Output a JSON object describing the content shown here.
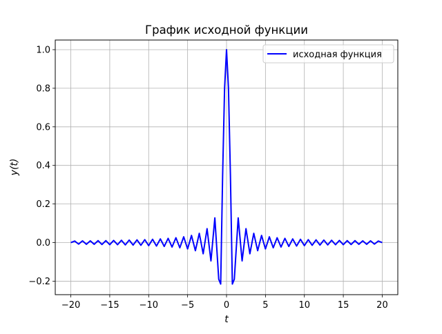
{
  "chart_data": {
    "type": "line",
    "title": "График исходной функции",
    "xlabel": "t",
    "ylabel": "y(t)",
    "xlim": [
      -22.0,
      22.0
    ],
    "ylim": [
      -0.27,
      1.05
    ],
    "xticks": [
      -20,
      -15,
      -10,
      -5,
      0,
      5,
      10,
      15,
      20
    ],
    "xtick_labels": [
      "−20",
      "−15",
      "−10",
      "−5",
      "0",
      "5",
      "10",
      "15",
      "20"
    ],
    "yticks": [
      -0.2,
      0.0,
      0.2,
      0.4,
      0.6,
      0.8,
      1.0
    ],
    "ytick_labels": [
      "−0.2",
      "0.0",
      "0.2",
      "0.4",
      "0.6",
      "0.8",
      "1.0"
    ],
    "grid": true,
    "legend_position": "top-right",
    "series": [
      {
        "name": "исходная функция",
        "color": "#0000ff",
        "x": [
          -20.0,
          -19.5,
          -19.0,
          -18.5,
          -18.0,
          -17.5,
          -17.0,
          -16.5,
          -16.0,
          -15.5,
          -15.0,
          -14.5,
          -14.0,
          -13.5,
          -13.0,
          -12.5,
          -12.0,
          -11.5,
          -11.0,
          -10.5,
          -10.0,
          -9.5,
          -9.0,
          -8.5,
          -8.0,
          -7.5,
          -7.0,
          -6.5,
          -6.0,
          -5.5,
          -5.0,
          -4.5,
          -4.0,
          -3.5,
          -3.0,
          -2.5,
          -2.0,
          -1.5,
          -1.0,
          -0.75,
          -0.5,
          -0.25,
          0.0,
          0.25,
          0.5,
          0.75,
          1.0,
          1.5,
          2.0,
          2.5,
          3.0,
          3.5,
          4.0,
          4.5,
          5.0,
          5.5,
          6.0,
          6.5,
          7.0,
          7.5,
          8.0,
          8.5,
          9.0,
          9.5,
          10.0,
          10.5,
          11.0,
          11.5,
          12.0,
          12.5,
          13.0,
          13.5,
          14.0,
          14.5,
          15.0,
          15.5,
          16.0,
          16.5,
          17.0,
          17.5,
          18.0,
          18.5,
          19.0,
          19.5,
          20.0
        ],
        "y": [
          0.0,
          0.008,
          -0.008,
          0.009,
          -0.009,
          0.009,
          -0.009,
          0.01,
          -0.01,
          0.01,
          -0.011,
          0.011,
          -0.011,
          0.012,
          -0.012,
          0.013,
          -0.013,
          0.014,
          -0.014,
          0.015,
          -0.016,
          0.017,
          -0.018,
          0.019,
          -0.02,
          0.022,
          -0.023,
          0.025,
          -0.027,
          0.03,
          -0.033,
          0.037,
          -0.042,
          0.048,
          -0.058,
          0.072,
          -0.095,
          0.128,
          -0.19,
          -0.215,
          0.35,
          0.8,
          1.0,
          0.8,
          0.35,
          -0.215,
          -0.19,
          0.128,
          -0.095,
          0.072,
          -0.058,
          0.048,
          -0.042,
          0.037,
          -0.033,
          0.03,
          -0.027,
          0.025,
          -0.023,
          0.022,
          -0.02,
          0.019,
          -0.018,
          0.017,
          -0.016,
          0.015,
          -0.014,
          0.014,
          -0.013,
          0.013,
          -0.012,
          0.012,
          -0.011,
          0.011,
          -0.011,
          0.01,
          -0.01,
          0.01,
          -0.009,
          0.009,
          -0.009,
          0.009,
          -0.008,
          0.008,
          0.0
        ]
      }
    ]
  }
}
